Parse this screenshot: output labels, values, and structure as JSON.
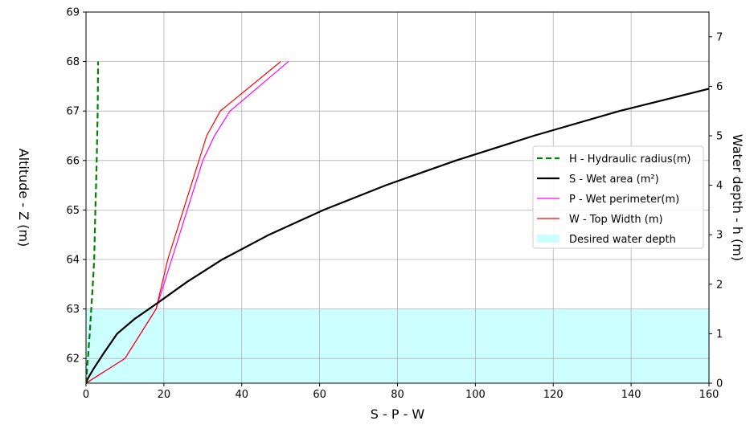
{
  "chart_data": {
    "type": "line",
    "xlabel": "S - P - W",
    "ylabel_left": "Altitude - Z (m)",
    "ylabel_right": "Water depth - h (m)",
    "xlim": [
      0,
      160
    ],
    "ylim_left": [
      61.5,
      69
    ],
    "ylim_right": [
      0,
      7.5
    ],
    "x_ticks": [
      0,
      20,
      40,
      60,
      80,
      100,
      120,
      140,
      160
    ],
    "y_ticks_left": [
      62,
      63,
      64,
      65,
      66,
      67,
      68,
      69
    ],
    "y_ticks_right": [
      0,
      1,
      2,
      3,
      4,
      5,
      6,
      7
    ],
    "grid": true,
    "legend_position": "center-right",
    "series": [
      {
        "name": "H - Hydraulic radius(m)",
        "color": "#008000",
        "style": "dashed",
        "points": [
          [
            0,
            61.5
          ],
          [
            0.48,
            62.0
          ],
          [
            0.95,
            62.5
          ],
          [
            1.35,
            63.0
          ],
          [
            1.75,
            63.5
          ],
          [
            2.1,
            64.0
          ],
          [
            2.4,
            65.0
          ],
          [
            2.75,
            66.0
          ],
          [
            3.0,
            67.0
          ],
          [
            3.1,
            68.0
          ]
        ]
      },
      {
        "name": "S - Wet area (m²)",
        "color": "#000000",
        "style": "solid",
        "points": [
          [
            0,
            61.5
          ],
          [
            0.5,
            61.6
          ],
          [
            2.0,
            61.8
          ],
          [
            4.5,
            62.1
          ],
          [
            8.0,
            62.5
          ],
          [
            12.5,
            62.8
          ],
          [
            18.0,
            63.1
          ],
          [
            26.0,
            63.55
          ],
          [
            35.0,
            64.0
          ],
          [
            47.0,
            64.5
          ],
          [
            61.0,
            65.0
          ],
          [
            77.0,
            65.5
          ],
          [
            95.0,
            66.0
          ],
          [
            115.0,
            66.5
          ],
          [
            137.0,
            67.0
          ],
          [
            160.0,
            67.45
          ]
        ]
      },
      {
        "name": "P -  Wet perimeter(m)",
        "color": "#ff00ff",
        "style": "solid",
        "points": [
          [
            0,
            61.5
          ],
          [
            10,
            62.0
          ],
          [
            18,
            63.0
          ],
          [
            22,
            64.0
          ],
          [
            26,
            65.0
          ],
          [
            30,
            66.0
          ],
          [
            33,
            66.5
          ],
          [
            37,
            67.0
          ],
          [
            52,
            68.0
          ]
        ]
      },
      {
        "name": "W - Top Width (m)",
        "color": "#ff0000",
        "style": "solid",
        "points": [
          [
            0,
            61.5
          ],
          [
            10,
            62.0
          ],
          [
            18,
            63.0
          ],
          [
            21,
            64.0
          ],
          [
            25,
            65.0
          ],
          [
            29,
            66.0
          ],
          [
            31,
            66.5
          ],
          [
            34.5,
            67.0
          ],
          [
            50,
            68.0
          ]
        ]
      }
    ],
    "shaded_region": {
      "name": "Desired water depth",
      "color": "#ccffff",
      "y_range_left": [
        61.5,
        63.0
      ]
    }
  }
}
